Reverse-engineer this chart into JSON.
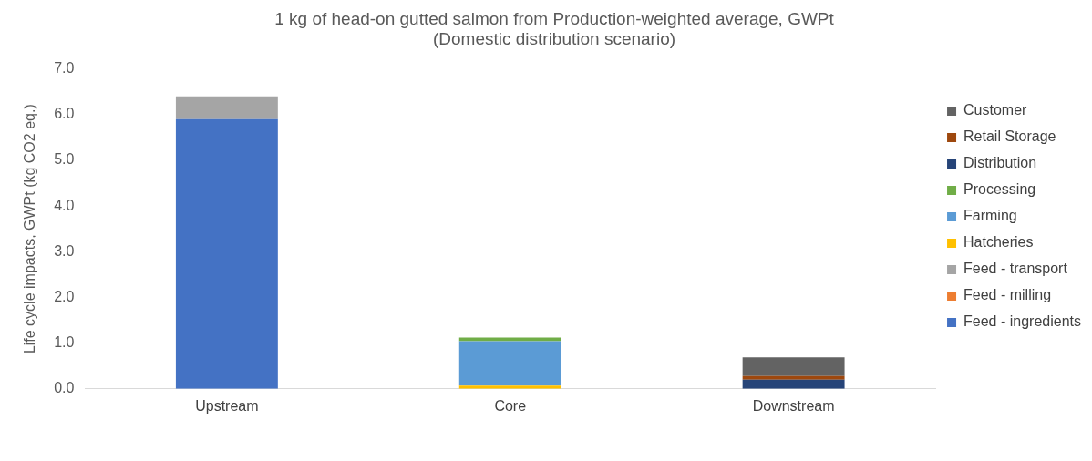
{
  "chart_data": {
    "type": "bar",
    "stacked": true,
    "title": "1 kg of head-on gutted salmon from Production-weighted average, GWPt",
    "subtitle": "(Domestic distribution scenario)",
    "ylabel": "Life cycle impacts, GWPt (kg CO2 eq.)",
    "categories": [
      "Upstream",
      "Core",
      "Downstream"
    ],
    "ylim": [
      0,
      7
    ],
    "yticks": [
      {
        "value": 0,
        "label": "0.0"
      },
      {
        "value": 1,
        "label": "1.0"
      },
      {
        "value": 2,
        "label": "2.0"
      },
      {
        "value": 3,
        "label": "3.0"
      },
      {
        "value": 4,
        "label": "4.0"
      },
      {
        "value": 5,
        "label": "5.0"
      },
      {
        "value": 6,
        "label": "6.0"
      },
      {
        "value": 7,
        "label": "7.0"
      }
    ],
    "grid": false,
    "legend": "right",
    "series": [
      {
        "name": "Feed - ingredients",
        "color": "#4472c4",
        "values": [
          5.9,
          0,
          0
        ]
      },
      {
        "name": "Feed - milling",
        "color": "#ed7d31",
        "values": [
          0,
          0,
          0
        ]
      },
      {
        "name": "Feed - transport",
        "color": "#a5a5a5",
        "values": [
          0.5,
          0,
          0
        ]
      },
      {
        "name": "Hatcheries",
        "color": "#ffc000",
        "values": [
          0,
          0.07,
          0
        ]
      },
      {
        "name": "Farming",
        "color": "#5b9bd5",
        "values": [
          0,
          0.97,
          0
        ]
      },
      {
        "name": "Processing",
        "color": "#70ad47",
        "values": [
          0,
          0.08,
          0
        ]
      },
      {
        "name": "Distribution",
        "color": "#264478",
        "values": [
          0,
          0,
          0.2
        ]
      },
      {
        "name": "Retail Storage",
        "color": "#9e480e",
        "values": [
          0,
          0,
          0.08
        ]
      },
      {
        "name": "Customer",
        "color": "#636363",
        "values": [
          0,
          0,
          0.41
        ]
      }
    ]
  }
}
